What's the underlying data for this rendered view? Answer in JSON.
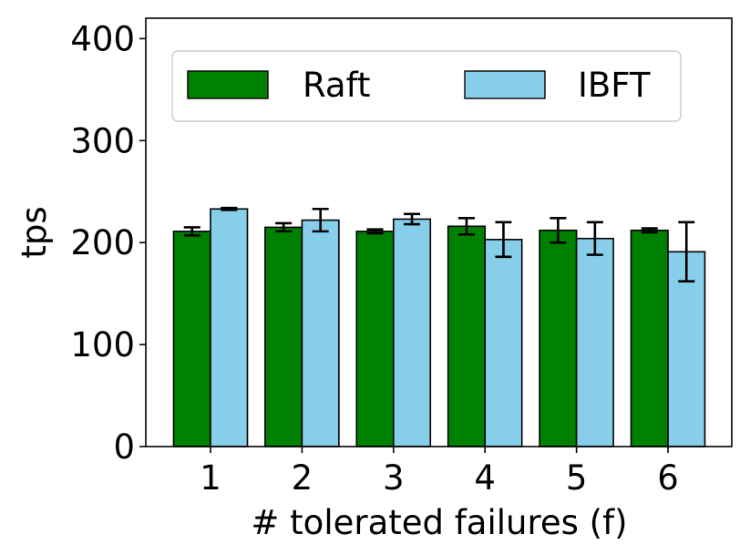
{
  "chart_data": {
    "type": "bar",
    "title": "",
    "xlabel": "# tolerated failures (f)",
    "ylabel": "tps",
    "ylim": [
      0,
      420
    ],
    "yticks": [
      0,
      100,
      200,
      300,
      400
    ],
    "categories": [
      "1",
      "2",
      "3",
      "4",
      "5",
      "6"
    ],
    "grid": false,
    "legend_position": "top",
    "series": [
      {
        "name": "Raft",
        "color": "#008000",
        "values": [
          211,
          215,
          211,
          216,
          212,
          212
        ],
        "errors": [
          4,
          4,
          2,
          8,
          12,
          2
        ]
      },
      {
        "name": "IBFT",
        "color": "#87CEEB",
        "values": [
          233,
          222,
          223,
          203,
          204,
          191
        ],
        "errors": [
          1,
          11,
          5,
          17,
          16,
          29
        ]
      }
    ]
  }
}
